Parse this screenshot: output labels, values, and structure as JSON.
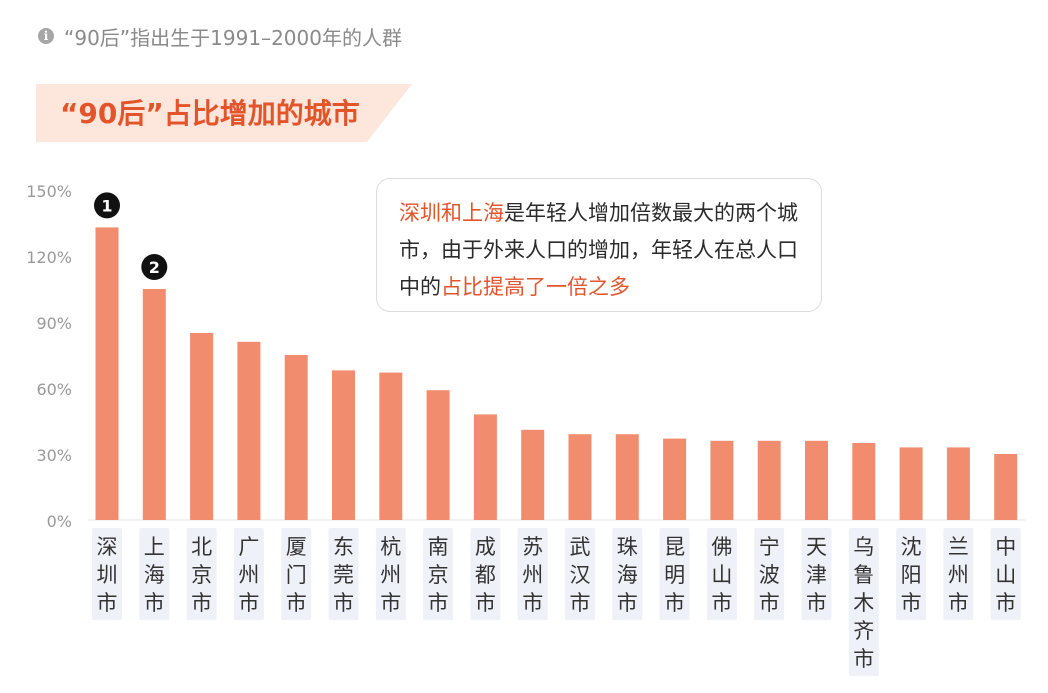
{
  "note": {
    "icon": "info-icon",
    "text": "“90后”指出生于1991–2000年的人群"
  },
  "banner": {
    "title": "“90后”占比增加的城市"
  },
  "callout": {
    "part1": "深圳和上海",
    "part2": "是年轻人增加倍数最大的两个城市，由于外来人口的增加，年轻人在总人口中的",
    "part3": "占比提高了一倍之多"
  },
  "colors": {
    "bar": "#f18d6e",
    "accent": "#e2552b",
    "axis_text": "#999999",
    "label_text": "#333333",
    "label_bg": "#eef1f7"
  },
  "chart_data": {
    "type": "bar",
    "categories": [
      "深圳市",
      "上海市",
      "北京市",
      "广州市",
      "厦门市",
      "东莞市",
      "杭州市",
      "南京市",
      "成都市",
      "苏州市",
      "武汉市",
      "珠海市",
      "昆明市",
      "佛山市",
      "宁波市",
      "天津市",
      "乌鲁木齐市",
      "沈阳市",
      "兰州市",
      "中山市"
    ],
    "values": [
      133,
      105,
      85,
      81,
      75,
      68,
      67,
      59,
      48,
      41,
      39,
      39,
      37,
      36,
      36,
      36,
      35,
      33,
      33,
      30
    ],
    "ylim": [
      0,
      150
    ],
    "yticks": [
      "0%",
      "30%",
      "60%",
      "90%",
      "120%",
      "150%"
    ],
    "ytick_values": [
      0,
      30,
      60,
      90,
      120,
      150
    ],
    "markers": [
      {
        "label": "1",
        "category": "深圳市"
      },
      {
        "label": "2",
        "category": "上海市"
      }
    ],
    "title": "",
    "xlabel": "",
    "ylabel": ""
  }
}
